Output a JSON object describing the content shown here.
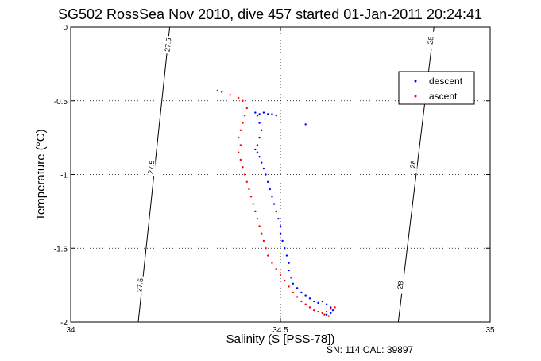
{
  "chart_data": {
    "type": "scatter",
    "title": "SG502 RossSea Nov 2010, dive 457 started 01-Jan-2011 20:24:41",
    "xlabel": "Salinity (S [PSS-78])",
    "ylabel": "Temperature (°C)",
    "xlim": [
      34,
      35
    ],
    "ylim": [
      -2,
      0
    ],
    "xticks": [
      34,
      34.5,
      35
    ],
    "xtick_labels": [
      "34",
      "34.5",
      "35"
    ],
    "yticks": [
      0,
      -0.5,
      -1,
      -1.5,
      -2
    ],
    "ytick_labels": [
      "0",
      "-0.5",
      "-1",
      "-1.5",
      "-2"
    ],
    "grid": true,
    "legend_position": "top-right",
    "footer": "SN: 114  CAL: 39897",
    "colors": {
      "descent": "#0000ff",
      "ascent": "#ff0000",
      "contour": "#000000"
    },
    "contours": [
      {
        "label": "27.5",
        "points": [
          [
            34.161,
            -2
          ],
          [
            34.236,
            0
          ]
        ],
        "label_positions": [
          [
            34.165,
            -1.75
          ],
          [
            34.192,
            -0.95
          ],
          [
            34.232,
            -0.12
          ]
        ]
      },
      {
        "label": "28",
        "points": [
          [
            34.781,
            -2
          ],
          [
            34.866,
            0
          ]
        ],
        "label_positions": [
          [
            34.786,
            -1.75
          ],
          [
            34.816,
            -0.93
          ],
          [
            34.858,
            -0.09
          ]
        ]
      }
    ],
    "series": [
      {
        "name": "descent",
        "points": [
          [
            34.44,
            -0.58
          ],
          [
            34.45,
            -0.59
          ],
          [
            34.46,
            -0.58
          ],
          [
            34.47,
            -0.59
          ],
          [
            34.48,
            -0.59
          ],
          [
            34.49,
            -0.6
          ],
          [
            34.56,
            -0.66
          ],
          [
            34.445,
            -0.6
          ],
          [
            34.45,
            -0.65
          ],
          [
            34.455,
            -0.7
          ],
          [
            34.45,
            -0.75
          ],
          [
            34.445,
            -0.8
          ],
          [
            34.44,
            -0.83
          ],
          [
            34.445,
            -0.85
          ],
          [
            34.45,
            -0.88
          ],
          [
            34.455,
            -0.92
          ],
          [
            34.46,
            -0.96
          ],
          [
            34.465,
            -1.0
          ],
          [
            34.47,
            -1.05
          ],
          [
            34.475,
            -1.1
          ],
          [
            34.48,
            -1.15
          ],
          [
            34.485,
            -1.2
          ],
          [
            34.49,
            -1.25
          ],
          [
            34.495,
            -1.3
          ],
          [
            34.5,
            -1.35
          ],
          [
            34.5,
            -1.4
          ],
          [
            34.505,
            -1.45
          ],
          [
            34.51,
            -1.5
          ],
          [
            34.515,
            -1.55
          ],
          [
            34.52,
            -1.6
          ],
          [
            34.52,
            -1.65
          ],
          [
            34.525,
            -1.7
          ],
          [
            34.53,
            -1.74
          ],
          [
            34.54,
            -1.77
          ],
          [
            34.55,
            -1.8
          ],
          [
            34.56,
            -1.82
          ],
          [
            34.57,
            -1.84
          ],
          [
            34.58,
            -1.86
          ],
          [
            34.59,
            -1.87
          ],
          [
            34.6,
            -1.86
          ],
          [
            34.61,
            -1.88
          ],
          [
            34.62,
            -1.9
          ],
          [
            34.625,
            -1.92
          ],
          [
            34.62,
            -1.94
          ],
          [
            34.61,
            -1.95
          ],
          [
            34.6,
            -1.94
          ]
        ]
      },
      {
        "name": "ascent",
        "points": [
          [
            34.35,
            -0.43
          ],
          [
            34.36,
            -0.44
          ],
          [
            34.38,
            -0.46
          ],
          [
            34.4,
            -0.48
          ],
          [
            34.41,
            -0.5
          ],
          [
            34.42,
            -0.55
          ],
          [
            34.415,
            -0.6
          ],
          [
            34.41,
            -0.65
          ],
          [
            34.405,
            -0.7
          ],
          [
            34.4,
            -0.75
          ],
          [
            34.405,
            -0.8
          ],
          [
            34.4,
            -0.85
          ],
          [
            34.405,
            -0.9
          ],
          [
            34.41,
            -0.95
          ],
          [
            34.415,
            -1.0
          ],
          [
            34.42,
            -1.05
          ],
          [
            34.425,
            -1.1
          ],
          [
            34.43,
            -1.15
          ],
          [
            34.435,
            -1.2
          ],
          [
            34.44,
            -1.25
          ],
          [
            34.445,
            -1.3
          ],
          [
            34.45,
            -1.35
          ],
          [
            34.455,
            -1.4
          ],
          [
            34.46,
            -1.45
          ],
          [
            34.465,
            -1.5
          ],
          [
            34.47,
            -1.55
          ],
          [
            34.48,
            -1.6
          ],
          [
            34.49,
            -1.64
          ],
          [
            34.5,
            -1.68
          ],
          [
            34.51,
            -1.72
          ],
          [
            34.52,
            -1.76
          ],
          [
            34.53,
            -1.8
          ],
          [
            34.54,
            -1.83
          ],
          [
            34.55,
            -1.86
          ],
          [
            34.56,
            -1.88
          ],
          [
            34.57,
            -1.9
          ],
          [
            34.58,
            -1.92
          ],
          [
            34.59,
            -1.93
          ],
          [
            34.6,
            -1.94
          ],
          [
            34.61,
            -1.93
          ],
          [
            34.62,
            -1.91
          ],
          [
            34.63,
            -1.9
          ],
          [
            34.615,
            -1.96
          ],
          [
            34.605,
            -1.95
          ]
        ]
      }
    ]
  }
}
